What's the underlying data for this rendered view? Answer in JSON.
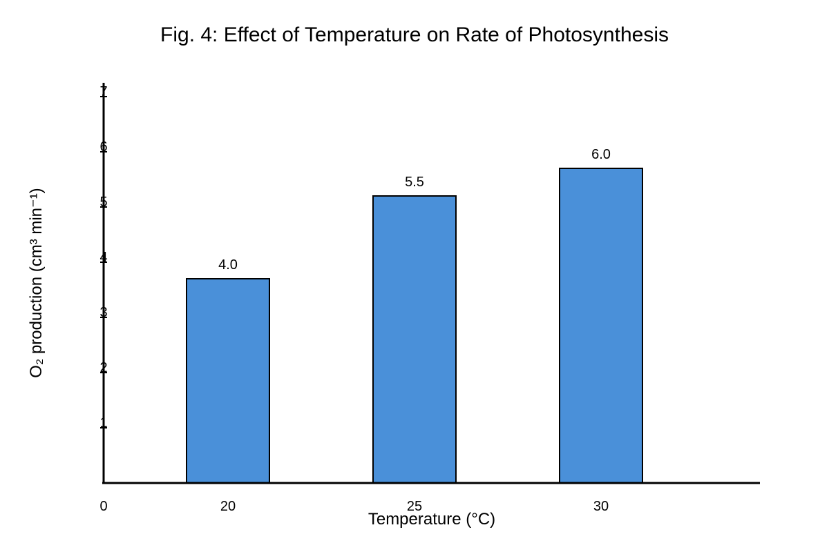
{
  "chart_data": {
    "type": "bar",
    "title": "Fig. 4: Effect of Temperature on Rate of Photosynthesis",
    "xlabel": "Temperature (°C)",
    "ylabel": "O₂ production (cm³ min⁻¹)",
    "x_origin_label": "0",
    "categories": [
      "20",
      "25",
      "30"
    ],
    "values": [
      4.0,
      5.5,
      6.0
    ],
    "value_labels": [
      "4.0",
      "5.5",
      "6.0"
    ],
    "y_ticks": [
      1,
      2,
      3,
      4,
      5,
      6,
      7
    ],
    "y_tick_labels": [
      "1",
      "2",
      "3",
      "4",
      "5",
      "6",
      "7"
    ],
    "grid": false,
    "legend": "none",
    "colors": {
      "bar_fill": "#4a90d9",
      "bar_stroke": "#000000",
      "axis": "#000000"
    }
  }
}
